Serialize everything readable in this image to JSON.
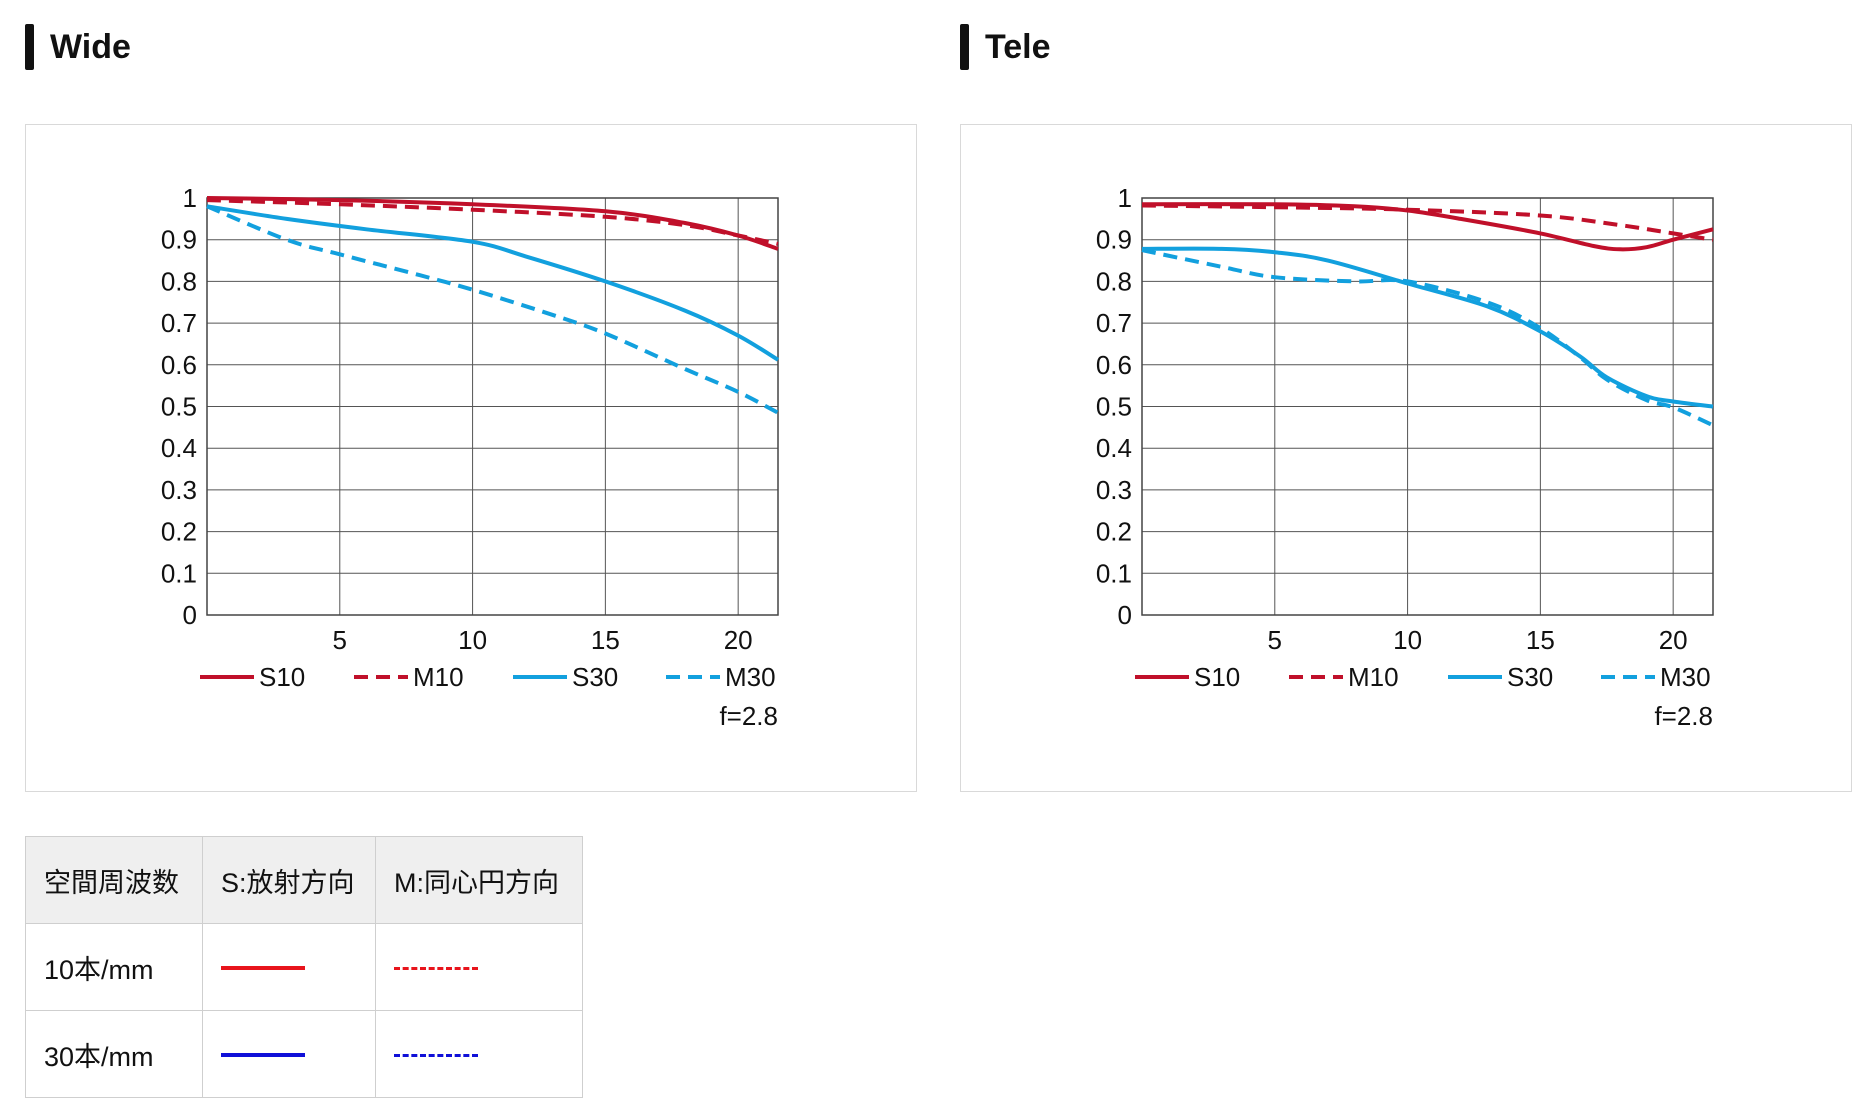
{
  "sections": [
    {
      "title": "Wide"
    },
    {
      "title": "Tele"
    }
  ],
  "chart_data": [
    {
      "type": "line",
      "title": "Wide",
      "xlabel": "",
      "ylabel": "",
      "xlim": [
        0,
        21.5
      ],
      "ylim": [
        0,
        1
      ],
      "x_ticks": [
        "5",
        "10",
        "15",
        "20"
      ],
      "y_ticks": [
        "0",
        "0.1",
        "0.2",
        "0.3",
        "0.4",
        "0.5",
        "0.6",
        "0.7",
        "0.8",
        "0.9",
        "1"
      ],
      "grid": true,
      "legend": "bottom",
      "annotation": "f=2.8",
      "series": [
        {
          "name": "S10",
          "color": "#c0102a",
          "dash": false,
          "points": [
            [
              0,
              1.0
            ],
            [
              5,
              0.995
            ],
            [
              10,
              0.985
            ],
            [
              15,
              0.968
            ],
            [
              18,
              0.94
            ],
            [
              20,
              0.91
            ],
            [
              21.5,
              0.878
            ]
          ]
        },
        {
          "name": "M10",
          "color": "#c0102a",
          "dash": true,
          "points": [
            [
              0,
              0.995
            ],
            [
              5,
              0.985
            ],
            [
              10,
              0.972
            ],
            [
              15,
              0.955
            ],
            [
              18,
              0.935
            ],
            [
              20,
              0.91
            ],
            [
              21.5,
              0.89
            ]
          ]
        },
        {
          "name": "S30",
          "color": "#12a0de",
          "dash": false,
          "points": [
            [
              0,
              0.98
            ],
            [
              3,
              0.95
            ],
            [
              6,
              0.925
            ],
            [
              10,
              0.895
            ],
            [
              12,
              0.86
            ],
            [
              15,
              0.8
            ],
            [
              18,
              0.73
            ],
            [
              20,
              0.67
            ],
            [
              21.5,
              0.612
            ]
          ]
        },
        {
          "name": "M30",
          "color": "#12a0de",
          "dash": true,
          "points": [
            [
              0,
              0.98
            ],
            [
              3,
              0.9
            ],
            [
              5,
              0.865
            ],
            [
              8,
              0.815
            ],
            [
              10,
              0.78
            ],
            [
              13,
              0.72
            ],
            [
              15,
              0.675
            ],
            [
              18,
              0.59
            ],
            [
              20,
              0.535
            ],
            [
              21.5,
              0.485
            ]
          ]
        }
      ]
    },
    {
      "type": "line",
      "title": "Tele",
      "xlabel": "",
      "ylabel": "",
      "xlim": [
        0,
        21.5
      ],
      "ylim": [
        0,
        1
      ],
      "x_ticks": [
        "5",
        "10",
        "15",
        "20"
      ],
      "y_ticks": [
        "0",
        "0.1",
        "0.2",
        "0.3",
        "0.4",
        "0.5",
        "0.6",
        "0.7",
        "0.8",
        "0.9",
        "1"
      ],
      "grid": true,
      "legend": "bottom",
      "annotation": "f=2.8",
      "series": [
        {
          "name": "S10",
          "color": "#c0102a",
          "dash": false,
          "points": [
            [
              0,
              0.985
            ],
            [
              5,
              0.985
            ],
            [
              8,
              0.98
            ],
            [
              10,
              0.97
            ],
            [
              12,
              0.95
            ],
            [
              15,
              0.915
            ],
            [
              17,
              0.885
            ],
            [
              18,
              0.877
            ],
            [
              19,
              0.882
            ],
            [
              20,
              0.9
            ],
            [
              21.5,
              0.925
            ]
          ]
        },
        {
          "name": "M10",
          "color": "#c0102a",
          "dash": true,
          "points": [
            [
              0,
              0.982
            ],
            [
              5,
              0.978
            ],
            [
              10,
              0.972
            ],
            [
              15,
              0.958
            ],
            [
              18,
              0.935
            ],
            [
              20,
              0.915
            ],
            [
              21.5,
              0.9
            ]
          ]
        },
        {
          "name": "S30",
          "color": "#12a0de",
          "dash": false,
          "points": [
            [
              0,
              0.878
            ],
            [
              3,
              0.878
            ],
            [
              5,
              0.87
            ],
            [
              7,
              0.85
            ],
            [
              10,
              0.795
            ],
            [
              13,
              0.74
            ],
            [
              15,
              0.68
            ],
            [
              16.5,
              0.62
            ],
            [
              17.5,
              0.57
            ],
            [
              19,
              0.525
            ],
            [
              20,
              0.512
            ],
            [
              21.5,
              0.5
            ]
          ]
        },
        {
          "name": "M30",
          "color": "#12a0de",
          "dash": true,
          "points": [
            [
              0,
              0.875
            ],
            [
              3,
              0.835
            ],
            [
              5,
              0.81
            ],
            [
              8,
              0.8
            ],
            [
              10,
              0.8
            ],
            [
              13,
              0.75
            ],
            [
              15,
              0.688
            ],
            [
              16.5,
              0.618
            ],
            [
              17.5,
              0.565
            ],
            [
              19,
              0.515
            ],
            [
              20,
              0.498
            ],
            [
              21.5,
              0.455
            ]
          ]
        }
      ]
    }
  ],
  "legend_table": {
    "headers": [
      "空間周波数",
      "S:放射方向",
      "M:同心円方向"
    ],
    "rows": [
      {
        "label": "10本/mm",
        "color": "#e8141c"
      },
      {
        "label": "30本/mm",
        "color": "#1010d8"
      }
    ]
  }
}
